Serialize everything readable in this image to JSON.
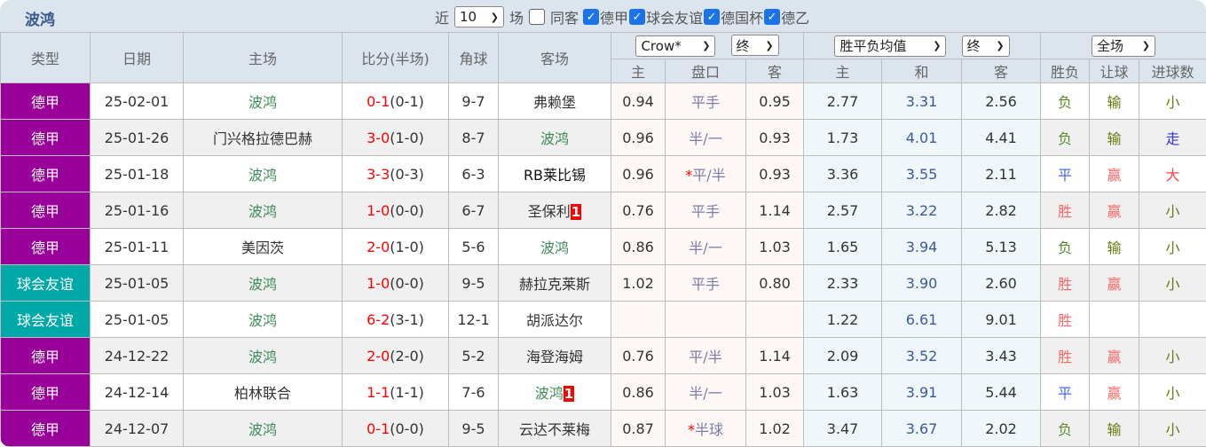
{
  "header": {
    "title": "波鸿",
    "recent_label": "近",
    "recent_value": "10",
    "games_label": "场",
    "same_away_label": "同客",
    "leagues": [
      {
        "label": "德甲",
        "checked": true
      },
      {
        "label": "球会友谊",
        "checked": true
      },
      {
        "label": "德国杯",
        "checked": true
      },
      {
        "label": "德乙",
        "checked": true
      }
    ]
  },
  "columns": {
    "type": "类型",
    "date": "日期",
    "home": "主场",
    "score": "比分(半场)",
    "corner": "角球",
    "away": "客场",
    "ah_company": "Crow*",
    "ah_stage": "终",
    "eu_type": "胜平负均值",
    "eu_stage": "终",
    "period": "全场",
    "ah_sub": [
      "主",
      "盘口",
      "客"
    ],
    "eu_sub": [
      "主",
      "和",
      "客"
    ],
    "res_sub": [
      "胜负",
      "让球",
      "进球数"
    ]
  },
  "colors": {
    "bundesliga": "#990099",
    "friendly": "#00a8a8"
  },
  "rows": [
    {
      "type": "德甲",
      "league": "bundesliga",
      "date": "25-02-01",
      "home": "波鸿",
      "home_self": true,
      "score": "0-1",
      "half": "(0-1)",
      "corner": "9-7",
      "away": "弗赖堡",
      "away_self": false,
      "away_red": "",
      "ah_h": "0.94",
      "ah_line": "平手",
      "ah_star": "",
      "ah_a": "0.95",
      "eu_h": "2.77",
      "eu_d": "3.31",
      "eu_a": "2.56",
      "wl": "负",
      "hc": "输",
      "ou": "小"
    },
    {
      "type": "德甲",
      "league": "bundesliga",
      "date": "25-01-26",
      "home": "门兴格拉德巴赫",
      "home_self": false,
      "score": "3-0",
      "half": "(1-0)",
      "corner": "8-7",
      "away": "波鸿",
      "away_self": true,
      "away_red": "",
      "ah_h": "0.96",
      "ah_line": "半/一",
      "ah_star": "",
      "ah_a": "0.93",
      "eu_h": "1.73",
      "eu_d": "4.01",
      "eu_a": "4.41",
      "wl": "负",
      "hc": "输",
      "ou": "走"
    },
    {
      "type": "德甲",
      "league": "bundesliga",
      "date": "25-01-18",
      "home": "波鸿",
      "home_self": true,
      "score": "3-3",
      "half": "(0-3)",
      "corner": "6-3",
      "away": "RB莱比锡",
      "away_self": false,
      "away_black": true,
      "away_red": "",
      "ah_h": "0.96",
      "ah_line": "平/半",
      "ah_star": "*",
      "ah_a": "0.93",
      "eu_h": "3.36",
      "eu_d": "3.55",
      "eu_a": "2.11",
      "wl": "平",
      "hc": "赢",
      "ou": "大"
    },
    {
      "type": "德甲",
      "league": "bundesliga",
      "date": "25-01-16",
      "home": "波鸿",
      "home_self": true,
      "score": "1-0",
      "half": "(0-0)",
      "corner": "6-7",
      "away": "圣保利",
      "away_self": false,
      "away_red": "1",
      "ah_h": "0.76",
      "ah_line": "平手",
      "ah_star": "",
      "ah_a": "1.14",
      "eu_h": "2.57",
      "eu_d": "3.22",
      "eu_a": "2.82",
      "wl": "胜",
      "hc": "赢",
      "ou": "小"
    },
    {
      "type": "德甲",
      "league": "bundesliga",
      "date": "25-01-11",
      "home": "美因茨",
      "home_self": false,
      "score": "2-0",
      "half": "(1-0)",
      "corner": "5-6",
      "away": "波鸿",
      "away_self": true,
      "away_red": "",
      "ah_h": "0.86",
      "ah_line": "半/一",
      "ah_star": "",
      "ah_a": "1.03",
      "eu_h": "1.65",
      "eu_d": "3.94",
      "eu_a": "5.13",
      "wl": "负",
      "hc": "输",
      "ou": "小"
    },
    {
      "type": "球会友谊",
      "league": "friendly",
      "date": "25-01-05",
      "home": "波鸿",
      "home_self": true,
      "score": "1-0",
      "half": "(0-0)",
      "corner": "9-5",
      "away": "赫拉克莱斯",
      "away_self": false,
      "away_red": "",
      "ah_h": "1.02",
      "ah_line": "平手",
      "ah_star": "",
      "ah_a": "0.80",
      "eu_h": "2.33",
      "eu_d": "3.90",
      "eu_a": "2.60",
      "wl": "胜",
      "hc": "赢",
      "ou": "小"
    },
    {
      "type": "球会友谊",
      "league": "friendly",
      "date": "25-01-05",
      "home": "波鸿",
      "home_self": true,
      "score": "6-2",
      "half": "(3-1)",
      "corner": "12-1",
      "away": "胡派达尔",
      "away_self": false,
      "away_red": "",
      "ah_h": "",
      "ah_line": "",
      "ah_star": "",
      "ah_a": "",
      "eu_h": "1.22",
      "eu_d": "6.61",
      "eu_a": "9.01",
      "wl": "胜",
      "hc": "",
      "ou": ""
    },
    {
      "type": "德甲",
      "league": "bundesliga",
      "date": "24-12-22",
      "home": "波鸿",
      "home_self": true,
      "score": "2-0",
      "half": "(2-0)",
      "corner": "5-2",
      "away": "海登海姆",
      "away_self": false,
      "away_red": "",
      "ah_h": "0.76",
      "ah_line": "平/半",
      "ah_star": "",
      "ah_a": "1.14",
      "eu_h": "2.09",
      "eu_d": "3.52",
      "eu_a": "3.43",
      "wl": "胜",
      "hc": "赢",
      "ou": "小"
    },
    {
      "type": "德甲",
      "league": "bundesliga",
      "date": "24-12-14",
      "home": "柏林联合",
      "home_self": false,
      "score": "1-1",
      "half": "(1-1)",
      "corner": "7-6",
      "away": "波鸿",
      "away_self": true,
      "away_red": "1",
      "ah_h": "0.86",
      "ah_line": "半/一",
      "ah_star": "",
      "ah_a": "1.03",
      "eu_h": "1.63",
      "eu_d": "3.91",
      "eu_a": "5.44",
      "wl": "平",
      "hc": "赢",
      "ou": "小"
    },
    {
      "type": "德甲",
      "league": "bundesliga",
      "date": "24-12-07",
      "home": "波鸿",
      "home_self": true,
      "score": "0-1",
      "half": "(0-0)",
      "corner": "9-5",
      "away": "云达不莱梅",
      "away_self": false,
      "away_red": "",
      "ah_h": "0.87",
      "ah_line": "半球",
      "ah_star": "*",
      "ah_a": "1.02",
      "eu_h": "3.47",
      "eu_d": "3.67",
      "eu_a": "2.02",
      "wl": "负",
      "hc": "输",
      "ou": "小"
    }
  ]
}
